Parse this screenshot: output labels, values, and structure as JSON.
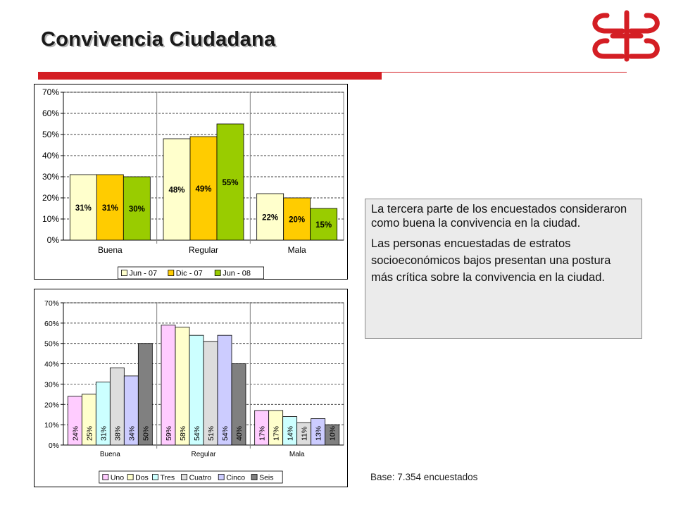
{
  "header": {
    "title": "Convivencia Ciudadana"
  },
  "logo": {
    "icon": "cb-logo-icon",
    "color": "#d41e24"
  },
  "chart_data": [
    {
      "type": "bar",
      "categories": [
        "Buena",
        "Regular",
        "Mala"
      ],
      "series": [
        {
          "name": "Jun - 07",
          "values": [
            31,
            48,
            22
          ],
          "labels": [
            "31%",
            "48%",
            "22%"
          ],
          "color": "#ffffcc"
        },
        {
          "name": "Dic - 07",
          "values": [
            31,
            49,
            20
          ],
          "labels": [
            "31%",
            "49%",
            "20%"
          ],
          "color": "#ffcc00"
        },
        {
          "name": "Jun - 08",
          "values": [
            30,
            55,
            15
          ],
          "labels": [
            "30%",
            "55%",
            "15%"
          ],
          "color": "#99cc00"
        }
      ],
      "yticks": [
        "0%",
        "10%",
        "20%",
        "30%",
        "40%",
        "50%",
        "60%",
        "70%"
      ],
      "ylim": [
        0,
        70
      ],
      "grid": true,
      "legend": "bottom"
    },
    {
      "type": "bar",
      "categories": [
        "Buena",
        "Regular",
        "Mala"
      ],
      "series": [
        {
          "name": "Uno",
          "values": [
            24,
            59,
            17
          ],
          "labels": [
            "24%",
            "59%",
            "17%"
          ],
          "color": "#ffccff"
        },
        {
          "name": "Dos",
          "values": [
            25,
            58,
            17
          ],
          "labels": [
            "25%",
            "58%",
            "17%"
          ],
          "color": "#ffffcc"
        },
        {
          "name": "Tres",
          "values": [
            31,
            54,
            14
          ],
          "labels": [
            "31%",
            "54%",
            "14%"
          ],
          "color": "#ccffff"
        },
        {
          "name": "Cuatro",
          "values": [
            38,
            51,
            11
          ],
          "labels": [
            "38%",
            "51%",
            "11%"
          ],
          "color": "#dddddd"
        },
        {
          "name": "Cinco",
          "values": [
            34,
            54,
            13
          ],
          "labels": [
            "34%",
            "54%",
            "13%"
          ],
          "color": "#ccccff"
        },
        {
          "name": "Seis",
          "values": [
            50,
            40,
            10
          ],
          "labels": [
            "50%",
            "40%",
            "10%"
          ],
          "color": "#808080"
        }
      ],
      "yticks": [
        "0%",
        "10%",
        "20%",
        "30%",
        "40%",
        "50%",
        "60%",
        "70%"
      ],
      "ylim": [
        0,
        70
      ],
      "grid": true,
      "legend": "bottom"
    }
  ],
  "textbox": {
    "paragraph1": "La tercera parte de los encuestados consideraron como buena la convivencia en la ciudad.",
    "paragraph2": "Las personas encuestadas de estratos socioeconómicos bajos presentan una postura más crítica sobre la convivencia en la ciudad."
  },
  "footer": {
    "base": "Base: 7.354 encuestados"
  }
}
